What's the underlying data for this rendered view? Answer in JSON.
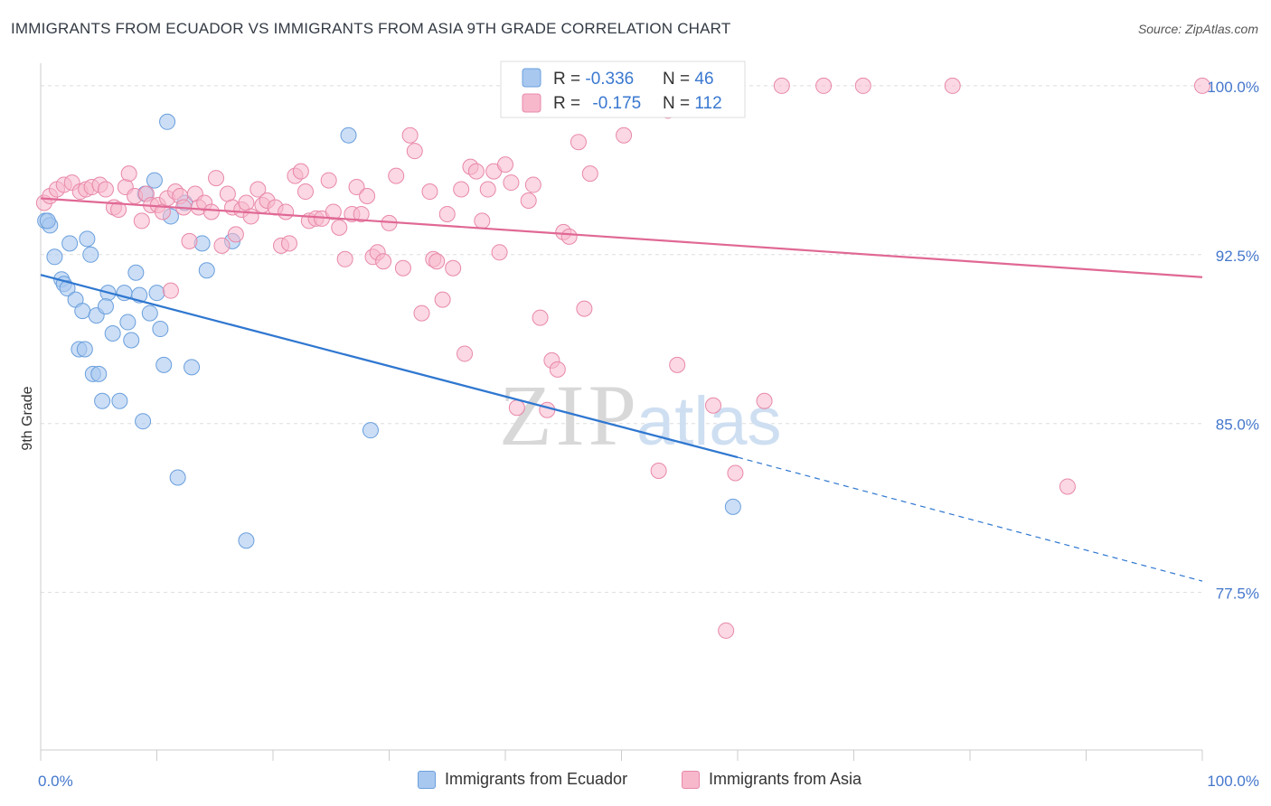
{
  "header": {
    "title": "IMMIGRANTS FROM ECUADOR VS IMMIGRANTS FROM ASIA 9TH GRADE CORRELATION CHART",
    "source": "Source: ZipAtlas.com"
  },
  "watermark": {
    "zip": "ZIP",
    "atlas": "atlas"
  },
  "colors": {
    "ecuador_fill": "#a8c8f0",
    "ecuador_stroke": "#6a9fdc",
    "ecuador_line": "#2f77d0",
    "asia_fill": "#f7b8cc",
    "asia_stroke": "#e888a8",
    "asia_line": "#e06894",
    "tick_label": "#4477cc",
    "grid": "#dddddd"
  },
  "legend_stats": {
    "rows": [
      {
        "r_label": "R = ",
        "r_value": "-0.336",
        "n_label": "N = ",
        "n_value": "46"
      },
      {
        "r_label": "R = ",
        "r_value": "-0.175",
        "n_label": "N = ",
        "n_value": "112"
      }
    ]
  },
  "chart_data": {
    "type": "scatter",
    "title": "IMMIGRANTS FROM ECUADOR VS IMMIGRANTS FROM ASIA 9TH GRADE CORRELATION CHART",
    "xlabel": "",
    "ylabel": "9th Grade",
    "xlim": [
      0,
      100
    ],
    "ylim": [
      70.5,
      101
    ],
    "x_tick_labels": [
      "0.0%",
      "100.0%"
    ],
    "y_ticks": [
      100,
      92.5,
      85,
      77.5
    ],
    "y_tick_labels": [
      "100.0%",
      "92.5%",
      "85.0%",
      "77.5%"
    ],
    "grid": "horizontal dashed",
    "legend_position": "top-center",
    "series": [
      {
        "name": "Immigrants from Ecuador",
        "r": -0.336,
        "n": 46,
        "trend": {
          "x0": 0,
          "y0": 91.6,
          "x1": 60,
          "y1": 83.5,
          "dashed_to_x": 100,
          "dashed_to_y": 78.0
        },
        "points": [
          [
            0.4,
            94.0
          ],
          [
            0.8,
            93.8
          ],
          [
            1.2,
            92.4
          ],
          [
            1.8,
            91.4
          ],
          [
            2.0,
            91.2
          ],
          [
            2.3,
            91.0
          ],
          [
            2.5,
            93.0
          ],
          [
            3.0,
            90.5
          ],
          [
            3.3,
            88.3
          ],
          [
            3.6,
            90.0
          ],
          [
            3.8,
            88.3
          ],
          [
            4.3,
            92.5
          ],
          [
            4.0,
            93.2
          ],
          [
            4.5,
            87.2
          ],
          [
            4.8,
            89.8
          ],
          [
            5.0,
            87.2
          ],
          [
            5.3,
            86.0
          ],
          [
            5.8,
            90.8
          ],
          [
            5.6,
            90.2
          ],
          [
            6.2,
            89.0
          ],
          [
            6.8,
            86.0
          ],
          [
            7.2,
            90.8
          ],
          [
            7.5,
            89.5
          ],
          [
            7.8,
            88.7
          ],
          [
            8.2,
            91.7
          ],
          [
            8.5,
            90.7
          ],
          [
            8.8,
            85.1
          ],
          [
            9.0,
            95.2
          ],
          [
            9.4,
            89.9
          ],
          [
            9.8,
            95.8
          ],
          [
            10.0,
            90.8
          ],
          [
            10.3,
            89.2
          ],
          [
            10.6,
            87.6
          ],
          [
            10.9,
            98.4
          ],
          [
            11.2,
            94.2
          ],
          [
            11.8,
            82.6
          ],
          [
            12.4,
            94.8
          ],
          [
            13.0,
            87.5
          ],
          [
            13.9,
            93.0
          ],
          [
            14.3,
            91.8
          ],
          [
            16.5,
            93.1
          ],
          [
            17.7,
            79.8
          ],
          [
            26.5,
            97.8
          ],
          [
            28.4,
            84.7
          ],
          [
            59.6,
            81.3
          ],
          [
            0.6,
            94.0
          ]
        ]
      },
      {
        "name": "Immigrants from Asia",
        "r": -0.175,
        "n": 112,
        "trend": {
          "x0": 0,
          "y0": 95.0,
          "x1": 100,
          "y1": 91.5
        },
        "points": [
          [
            0.3,
            94.8
          ],
          [
            0.8,
            95.1
          ],
          [
            1.4,
            95.4
          ],
          [
            2.0,
            95.6
          ],
          [
            2.7,
            95.7
          ],
          [
            3.4,
            95.3
          ],
          [
            3.9,
            95.4
          ],
          [
            4.4,
            95.5
          ],
          [
            5.1,
            95.6
          ],
          [
            5.6,
            95.4
          ],
          [
            6.3,
            94.6
          ],
          [
            6.7,
            94.5
          ],
          [
            7.3,
            95.5
          ],
          [
            7.6,
            96.1
          ],
          [
            8.1,
            95.1
          ],
          [
            8.7,
            94.0
          ],
          [
            9.1,
            95.2
          ],
          [
            9.5,
            94.7
          ],
          [
            10.1,
            94.7
          ],
          [
            10.5,
            94.4
          ],
          [
            10.9,
            95.0
          ],
          [
            11.2,
            90.9
          ],
          [
            11.6,
            95.3
          ],
          [
            12.0,
            95.1
          ],
          [
            12.3,
            94.6
          ],
          [
            12.8,
            93.1
          ],
          [
            13.3,
            95.2
          ],
          [
            13.6,
            94.6
          ],
          [
            14.1,
            94.8
          ],
          [
            14.7,
            94.4
          ],
          [
            15.1,
            95.9
          ],
          [
            15.6,
            92.9
          ],
          [
            16.1,
            95.2
          ],
          [
            16.5,
            94.6
          ],
          [
            16.8,
            93.4
          ],
          [
            17.3,
            94.5
          ],
          [
            17.7,
            94.8
          ],
          [
            18.1,
            94.2
          ],
          [
            18.7,
            95.4
          ],
          [
            19.1,
            94.7
          ],
          [
            19.5,
            94.9
          ],
          [
            20.2,
            94.6
          ],
          [
            20.7,
            92.9
          ],
          [
            21.1,
            94.4
          ],
          [
            21.4,
            93.0
          ],
          [
            21.9,
            96.0
          ],
          [
            22.4,
            96.2
          ],
          [
            22.8,
            95.3
          ],
          [
            23.1,
            94.0
          ],
          [
            23.7,
            94.1
          ],
          [
            24.2,
            94.1
          ],
          [
            24.8,
            95.8
          ],
          [
            25.2,
            94.4
          ],
          [
            25.7,
            93.7
          ],
          [
            26.2,
            92.3
          ],
          [
            26.8,
            94.3
          ],
          [
            27.2,
            95.5
          ],
          [
            27.6,
            94.3
          ],
          [
            28.1,
            95.1
          ],
          [
            28.6,
            92.4
          ],
          [
            29.0,
            92.6
          ],
          [
            29.5,
            92.2
          ],
          [
            30.0,
            93.9
          ],
          [
            30.6,
            96.0
          ],
          [
            31.2,
            91.9
          ],
          [
            31.8,
            97.8
          ],
          [
            32.2,
            97.1
          ],
          [
            32.8,
            89.9
          ],
          [
            33.5,
            95.3
          ],
          [
            33.8,
            92.3
          ],
          [
            34.1,
            92.2
          ],
          [
            34.6,
            90.5
          ],
          [
            35.0,
            94.3
          ],
          [
            35.5,
            91.9
          ],
          [
            36.2,
            95.4
          ],
          [
            36.5,
            88.1
          ],
          [
            37.0,
            96.4
          ],
          [
            37.5,
            96.2
          ],
          [
            38.0,
            94.0
          ],
          [
            38.5,
            95.4
          ],
          [
            39.0,
            96.2
          ],
          [
            39.5,
            92.6
          ],
          [
            40.0,
            96.5
          ],
          [
            40.5,
            95.7
          ],
          [
            41.0,
            85.7
          ],
          [
            42.0,
            94.9
          ],
          [
            42.4,
            95.6
          ],
          [
            43.0,
            89.7
          ],
          [
            43.6,
            85.6
          ],
          [
            44.0,
            87.8
          ],
          [
            44.5,
            87.4
          ],
          [
            45.0,
            93.5
          ],
          [
            45.5,
            93.3
          ],
          [
            46.3,
            97.5
          ],
          [
            46.8,
            90.1
          ],
          [
            47.3,
            96.1
          ],
          [
            50.2,
            97.8
          ],
          [
            51.6,
            100.0
          ],
          [
            53.2,
            82.9
          ],
          [
            54.0,
            98.9
          ],
          [
            54.8,
            87.6
          ],
          [
            57.9,
            85.8
          ],
          [
            59.0,
            75.8
          ],
          [
            59.8,
            82.8
          ],
          [
            62.3,
            86.0
          ],
          [
            63.8,
            100.0
          ],
          [
            67.4,
            100.0
          ],
          [
            70.8,
            100.0
          ],
          [
            78.5,
            100.0
          ],
          [
            88.4,
            82.2
          ],
          [
            100.0,
            100.0
          ],
          [
            51.9,
            100.0
          ]
        ]
      }
    ]
  },
  "bottom_legend": {
    "items": [
      {
        "label": "Immigrants from Ecuador"
      },
      {
        "label": "Immigrants from Asia"
      }
    ]
  }
}
